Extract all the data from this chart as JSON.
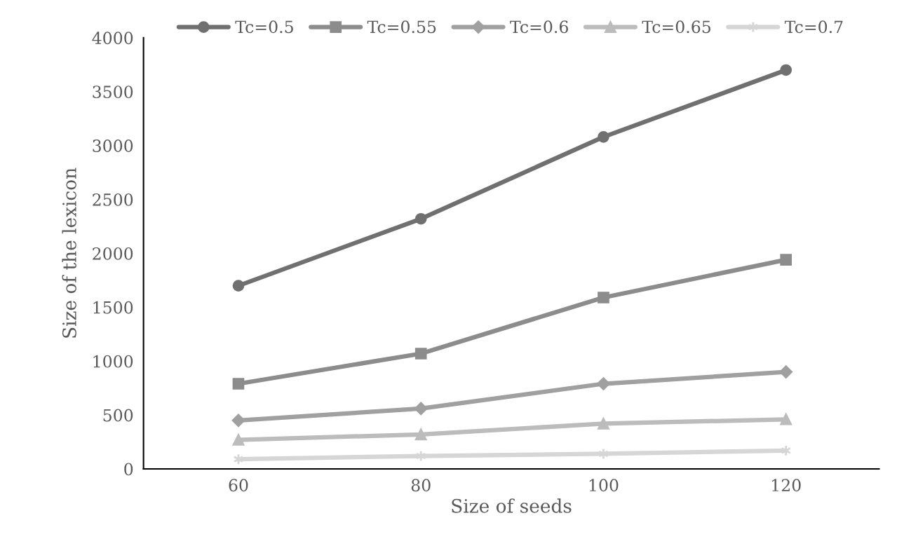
{
  "chart_data": {
    "type": "line",
    "xlabel": "Size of seeds",
    "ylabel": "Size of the lexicon",
    "categories": [
      "60",
      "80",
      "100",
      "120"
    ],
    "series": [
      {
        "name": "Tc=0.5",
        "color": "#707070",
        "marker": "circle",
        "values": [
          1700,
          2320,
          3080,
          3700
        ]
      },
      {
        "name": "Tc=0.55",
        "color": "#8c8c8c",
        "marker": "square",
        "values": [
          790,
          1070,
          1590,
          1940
        ]
      },
      {
        "name": "Tc=0.6",
        "color": "#a0a0a0",
        "marker": "diamond",
        "values": [
          450,
          560,
          790,
          900
        ]
      },
      {
        "name": "Tc=0.65",
        "color": "#bcbcbc",
        "marker": "triangle",
        "values": [
          270,
          320,
          420,
          460
        ]
      },
      {
        "name": "Tc=0.7",
        "color": "#d6d6d6",
        "marker": "cross",
        "values": [
          90,
          120,
          140,
          170
        ]
      }
    ],
    "ylim": [
      0,
      4000
    ],
    "yticks": [
      0,
      500,
      1000,
      1500,
      2000,
      2500,
      3000,
      3500,
      4000
    ],
    "grid": false,
    "legend": "top",
    "line_style": "solid"
  }
}
